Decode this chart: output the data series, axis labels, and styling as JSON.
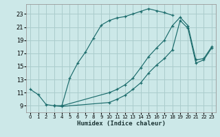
{
  "xlabel": "Humidex (Indice chaleur)",
  "xlim": [
    -0.5,
    23.5
  ],
  "ylim": [
    8.0,
    24.5
  ],
  "xticks": [
    0,
    1,
    2,
    3,
    4,
    5,
    6,
    7,
    8,
    9,
    10,
    11,
    12,
    13,
    14,
    15,
    16,
    17,
    18,
    19,
    20,
    21,
    22,
    23
  ],
  "yticks": [
    9,
    11,
    13,
    15,
    17,
    19,
    21,
    23
  ],
  "bg_color": "#cce8e8",
  "grid_color": "#aacccc",
  "line_color": "#1a6b6b",
  "curve1_x": [
    0,
    1,
    2,
    3,
    4,
    5,
    6,
    7,
    8,
    9,
    10,
    11,
    12,
    13,
    14,
    15,
    16,
    17,
    18
  ],
  "curve1_y": [
    11.5,
    10.7,
    9.2,
    9.0,
    9.0,
    13.2,
    15.5,
    17.2,
    19.3,
    21.3,
    22.0,
    22.4,
    22.6,
    23.0,
    23.4,
    23.8,
    23.5,
    23.2,
    22.8
  ],
  "curve2_x": [
    3,
    4,
    10,
    11,
    12,
    13,
    14,
    15,
    16,
    17,
    18,
    19,
    20,
    21,
    22,
    23
  ],
  "curve2_y": [
    9.0,
    9.0,
    11.0,
    11.5,
    12.2,
    13.2,
    14.8,
    16.5,
    17.8,
    19.0,
    21.2,
    22.5,
    21.2,
    16.0,
    16.2,
    18.0
  ],
  "curve3_x": [
    3,
    4,
    10,
    11,
    12,
    13,
    14,
    15,
    16,
    17,
    18,
    19,
    20,
    21,
    22,
    23
  ],
  "curve3_y": [
    9.0,
    8.9,
    9.5,
    10.0,
    10.6,
    11.5,
    12.5,
    14.0,
    15.2,
    16.2,
    17.5,
    22.0,
    20.8,
    15.5,
    16.0,
    17.8
  ]
}
